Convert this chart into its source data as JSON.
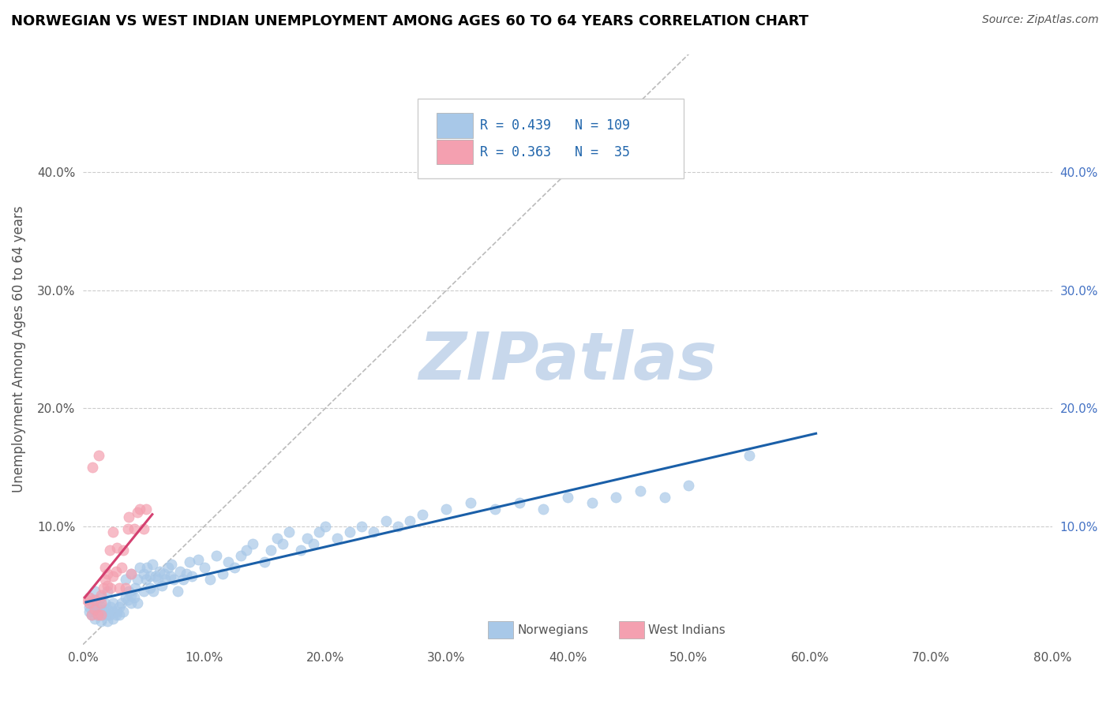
{
  "title": "NORWEGIAN VS WEST INDIAN UNEMPLOYMENT AMONG AGES 60 TO 64 YEARS CORRELATION CHART",
  "source": "Source: ZipAtlas.com",
  "ylabel": "Unemployment Among Ages 60 to 64 years",
  "xlim": [
    0.0,
    0.8
  ],
  "ylim": [
    0.0,
    0.5
  ],
  "xticks": [
    0.0,
    0.1,
    0.2,
    0.3,
    0.4,
    0.5,
    0.6,
    0.7,
    0.8
  ],
  "xticklabels": [
    "0.0%",
    "10.0%",
    "20.0%",
    "30.0%",
    "40.0%",
    "50.0%",
    "60.0%",
    "70.0%",
    "80.0%"
  ],
  "yticks": [
    0.0,
    0.1,
    0.2,
    0.3,
    0.4
  ],
  "yticklabels": [
    "",
    "10.0%",
    "20.0%",
    "30.0%",
    "40.0%"
  ],
  "blue_color": "#a8c8e8",
  "pink_color": "#f4a0b0",
  "blue_line_color": "#1a5fa8",
  "pink_line_color": "#d44070",
  "watermark_text": "ZIPatlas",
  "watermark_color": "#c8d8ec",
  "norwegian_x": [
    0.005,
    0.005,
    0.005,
    0.007,
    0.008,
    0.01,
    0.01,
    0.01,
    0.01,
    0.01,
    0.012,
    0.013,
    0.015,
    0.015,
    0.015,
    0.015,
    0.018,
    0.018,
    0.02,
    0.02,
    0.02,
    0.02,
    0.022,
    0.023,
    0.025,
    0.025,
    0.025,
    0.027,
    0.028,
    0.03,
    0.03,
    0.032,
    0.033,
    0.035,
    0.035,
    0.037,
    0.038,
    0.04,
    0.04,
    0.04,
    0.042,
    0.043,
    0.045,
    0.045,
    0.047,
    0.05,
    0.05,
    0.052,
    0.053,
    0.055,
    0.055,
    0.057,
    0.058,
    0.06,
    0.062,
    0.063,
    0.065,
    0.067,
    0.068,
    0.07,
    0.072,
    0.073,
    0.075,
    0.078,
    0.08,
    0.083,
    0.085,
    0.088,
    0.09,
    0.095,
    0.1,
    0.105,
    0.11,
    0.115,
    0.12,
    0.125,
    0.13,
    0.135,
    0.14,
    0.15,
    0.155,
    0.16,
    0.165,
    0.17,
    0.18,
    0.185,
    0.19,
    0.195,
    0.2,
    0.21,
    0.22,
    0.23,
    0.24,
    0.25,
    0.26,
    0.27,
    0.28,
    0.3,
    0.32,
    0.34,
    0.36,
    0.38,
    0.4,
    0.42,
    0.44,
    0.46,
    0.48,
    0.5,
    0.55
  ],
  "norwegian_y": [
    0.028,
    0.032,
    0.04,
    0.025,
    0.035,
    0.022,
    0.028,
    0.032,
    0.038,
    0.045,
    0.025,
    0.03,
    0.02,
    0.025,
    0.032,
    0.04,
    0.028,
    0.035,
    0.02,
    0.025,
    0.03,
    0.045,
    0.025,
    0.032,
    0.022,
    0.028,
    0.035,
    0.025,
    0.028,
    0.025,
    0.032,
    0.035,
    0.028,
    0.04,
    0.055,
    0.038,
    0.045,
    0.035,
    0.042,
    0.06,
    0.04,
    0.048,
    0.035,
    0.055,
    0.065,
    0.045,
    0.06,
    0.055,
    0.065,
    0.048,
    0.058,
    0.068,
    0.045,
    0.058,
    0.055,
    0.062,
    0.05,
    0.06,
    0.055,
    0.065,
    0.058,
    0.068,
    0.055,
    0.045,
    0.062,
    0.055,
    0.06,
    0.07,
    0.058,
    0.072,
    0.065,
    0.055,
    0.075,
    0.06,
    0.07,
    0.065,
    0.075,
    0.08,
    0.085,
    0.07,
    0.08,
    0.09,
    0.085,
    0.095,
    0.08,
    0.09,
    0.085,
    0.095,
    0.1,
    0.09,
    0.095,
    0.1,
    0.095,
    0.105,
    0.1,
    0.105,
    0.11,
    0.115,
    0.12,
    0.115,
    0.12,
    0.115,
    0.125,
    0.12,
    0.125,
    0.13,
    0.125,
    0.135,
    0.16
  ],
  "westindian_x": [
    0.003,
    0.005,
    0.005,
    0.007,
    0.008,
    0.01,
    0.01,
    0.012,
    0.013,
    0.015,
    0.015,
    0.015,
    0.017,
    0.018,
    0.018,
    0.02,
    0.02,
    0.022,
    0.023,
    0.025,
    0.025,
    0.027,
    0.028,
    0.03,
    0.032,
    0.033,
    0.035,
    0.037,
    0.038,
    0.04,
    0.042,
    0.045,
    0.047,
    0.05,
    0.052
  ],
  "westindian_y": [
    0.038,
    0.035,
    0.04,
    0.025,
    0.15,
    0.03,
    0.038,
    0.025,
    0.16,
    0.025,
    0.035,
    0.042,
    0.048,
    0.055,
    0.065,
    0.05,
    0.06,
    0.08,
    0.048,
    0.058,
    0.095,
    0.062,
    0.082,
    0.048,
    0.065,
    0.08,
    0.048,
    0.098,
    0.108,
    0.06,
    0.098,
    0.112,
    0.115,
    0.098,
    0.115
  ]
}
